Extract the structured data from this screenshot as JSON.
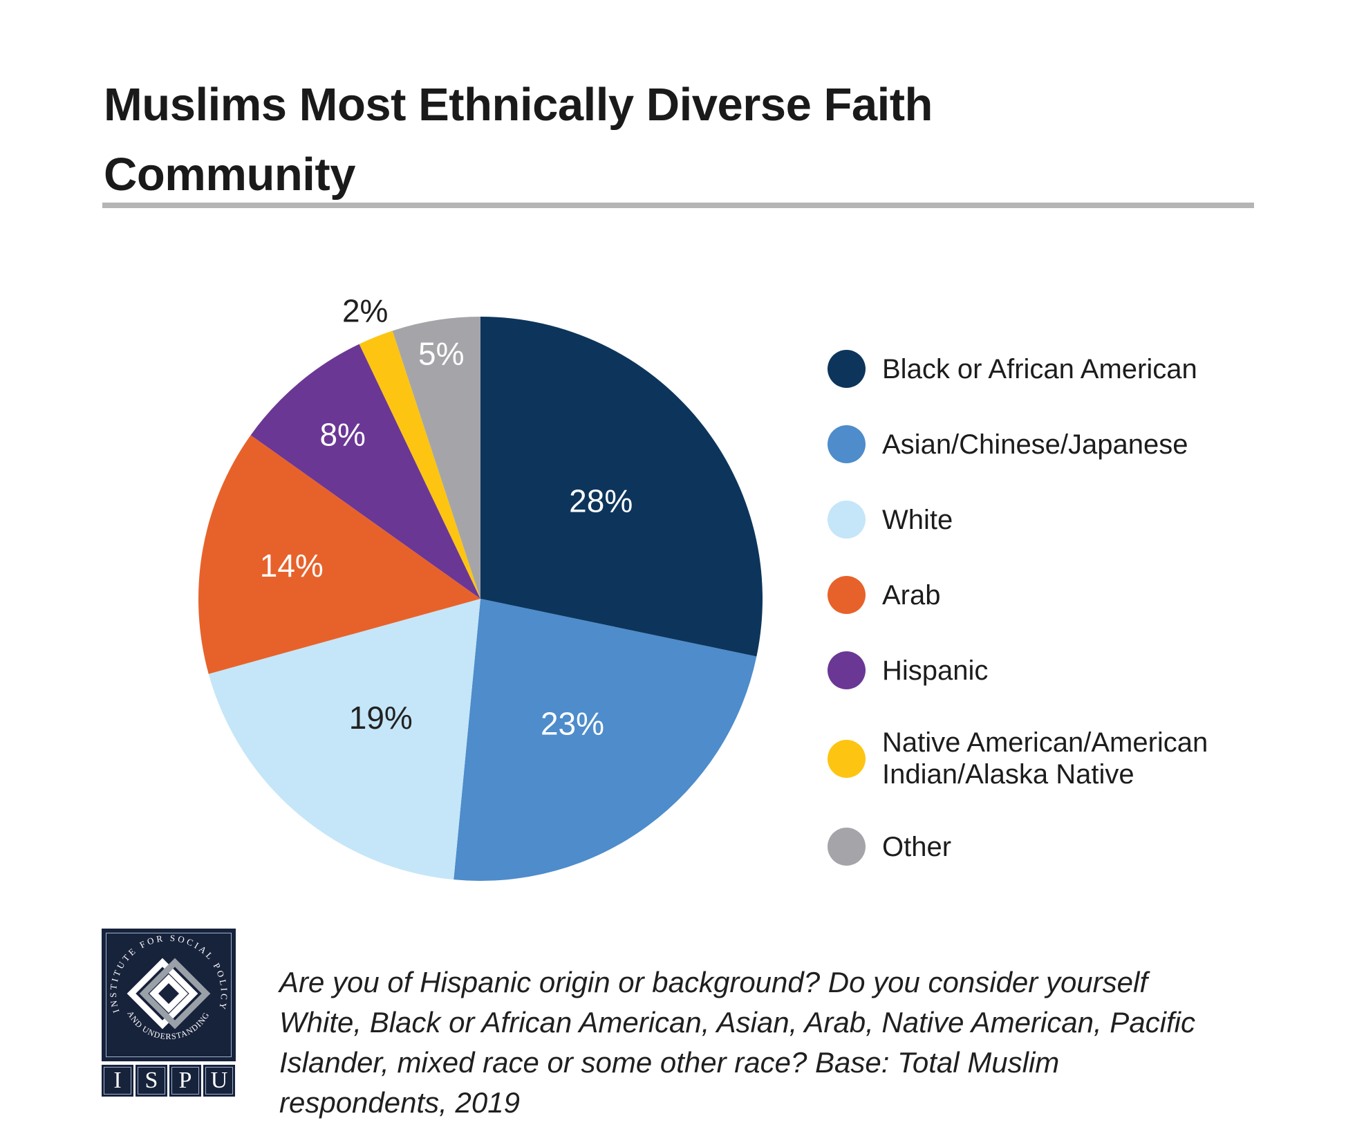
{
  "page": {
    "background": "#FFFFFF"
  },
  "header": {
    "title": "Muslims Most Ethnically Diverse Faith\nCommunity",
    "divider_color": "#B5B5B5"
  },
  "chart_data": {
    "type": "pie",
    "title": "Muslims Most Ethnically Diverse Faith Community",
    "legend_position": "right",
    "start_angle_deg": 0,
    "direction": "clockwise",
    "slices": [
      {
        "label": "Black or African American",
        "value": 28,
        "color": "#0D355C",
        "label_color": "#FFFFFF",
        "label_r": 0.55
      },
      {
        "label": "Asian/Chinese/Japanese",
        "value": 23,
        "color": "#4E8CCB",
        "label_color": "#FFFFFF",
        "label_r": 0.55
      },
      {
        "label": "White",
        "value": 19,
        "color": "#C5E6F8",
        "label_color": "#222222",
        "label_r": 0.55
      },
      {
        "label": "Arab",
        "value": 14,
        "color": "#E7622B",
        "label_color": "#FFFFFF",
        "label_r": 0.68
      },
      {
        "label": "Hispanic",
        "value": 8,
        "color": "#6B3795",
        "label_color": "#FFFFFF",
        "label_r": 0.76
      },
      {
        "label": "Native American/American Indian/Alaska Native",
        "legend_label": "Native American/American\nIndian/Alaska Native",
        "value": 2,
        "color": "#FDC511",
        "label_color": "#1F1F1F",
        "label_r": 1.1
      },
      {
        "label": "Other",
        "value": 5,
        "color": "#A5A5A9",
        "label_color": "#FFFFFF",
        "label_r": 0.88
      }
    ]
  },
  "footer": {
    "caption": "Are you of Hispanic origin or background? Do you consider yourself\nWhite, Black or African American, Asian, Arab, Native American, Pacific\nIslander, mixed race or some other race? Base: Total Muslim\nrespondents, 2019",
    "logo": {
      "circle_text_top": "INSTITUTE FOR SOCIAL POLICY",
      "circle_text_bottom": "AND UNDERSTANDING",
      "letters": [
        "I",
        "S",
        "P",
        "U"
      ],
      "navy": "#17223B",
      "gray": "#9AA0A8"
    }
  }
}
